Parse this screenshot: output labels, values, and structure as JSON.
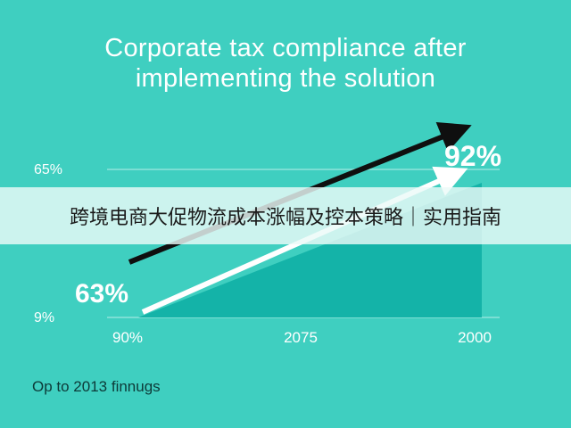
{
  "chart_data": {
    "type": "area",
    "title_lines": [
      "Corporate tax compliance after",
      "implementing the solution"
    ],
    "y_tick_labels": [
      "65%",
      "9%"
    ],
    "x_tick_labels": [
      "90%",
      "2075",
      "2000"
    ],
    "data_labels": {
      "start": "63%",
      "end": "92%"
    },
    "series": [
      {
        "values": [
          63,
          92
        ]
      }
    ],
    "footnote": "Op to 2013 finnugs",
    "grid": true,
    "colors": {
      "background": "#3fcfc0",
      "area": "#14b3a8",
      "white_arrow": "#ffffff",
      "black_arrow": "#0f0f0f",
      "grid": "#8fe3da"
    }
  },
  "overlay_banner": "跨境电商大促物流成本涨幅及控本策略｜实用指南"
}
